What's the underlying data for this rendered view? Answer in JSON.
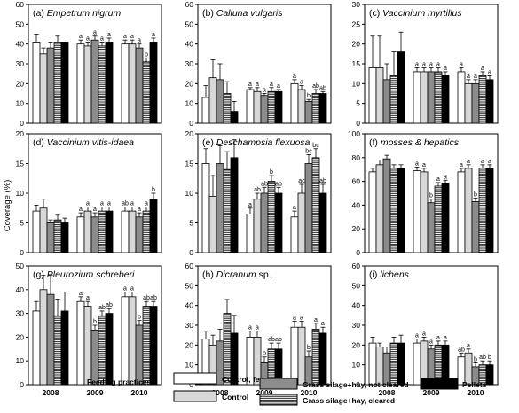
{
  "ylabel": "Coverage (%)",
  "legend": {
    "title": "Feeding practices",
    "items": [
      "Control, fenced",
      "Control",
      "Grass silage+hay, not cleared",
      "Grass silage+hay, cleared",
      "Pellets"
    ]
  },
  "colors": {
    "control_fenced": "#ffffff",
    "control": "#d8d8d8",
    "not_cleared": "#8c8c8c",
    "cleared_hatch": "#000000",
    "pellets": "#000000"
  },
  "chart_data": [
    {
      "type": "bar",
      "title_prefix": "(a)",
      "title_species": "Empetrum nigrum",
      "ylim": [
        0,
        60
      ],
      "yticks": [
        "0",
        "10",
        "20",
        "30",
        "40",
        "50",
        "60"
      ],
      "categories": [
        "2008",
        "2009",
        "2010"
      ],
      "series": [
        {
          "name": "Control, fenced",
          "values": [
            41,
            40,
            40
          ],
          "err": [
            4,
            2,
            2
          ]
        },
        {
          "name": "Control",
          "values": [
            35,
            39,
            40
          ],
          "err": [
            3,
            2,
            2
          ]
        },
        {
          "name": "Grass silage+hay, not cleared",
          "values": [
            38,
            42,
            38
          ],
          "err": [
            3,
            2,
            2
          ]
        },
        {
          "name": "Grass silage+hay, cleared",
          "values": [
            41,
            39,
            31
          ],
          "err": [
            3,
            2,
            2
          ]
        },
        {
          "name": "Pellets",
          "values": [
            41,
            41,
            41
          ],
          "err": [
            0,
            2,
            2
          ]
        }
      ],
      "letters": [
        [
          "",
          "",
          "",
          "",
          ""
        ],
        [
          "a",
          "a",
          "a",
          "a",
          "a"
        ],
        [
          "a",
          "a",
          "a",
          "b",
          "a"
        ]
      ]
    },
    {
      "type": "bar",
      "title_prefix": "(b)",
      "title_species": "Calluna vulgaris",
      "ylim": [
        0,
        60
      ],
      "yticks": [
        "0",
        "10",
        "20",
        "30",
        "40",
        "50",
        "60"
      ],
      "categories": [
        "2008",
        "2009",
        "2010"
      ],
      "series": [
        {
          "name": "Control, fenced",
          "values": [
            13,
            17,
            20
          ],
          "err": [
            6,
            1,
            2
          ]
        },
        {
          "name": "Control",
          "values": [
            23,
            16,
            17
          ],
          "err": [
            9,
            2,
            2
          ]
        },
        {
          "name": "Grass silage+hay, not cleared",
          "values": [
            22,
            14,
            11
          ],
          "err": [
            8,
            1,
            1
          ]
        },
        {
          "name": "Grass silage+hay, cleared",
          "values": [
            15,
            16,
            15
          ],
          "err": [
            6,
            2,
            2
          ]
        },
        {
          "name": "Pellets",
          "values": [
            6,
            16,
            15
          ],
          "err": [
            5,
            1,
            1
          ]
        }
      ],
      "letters": [
        [
          "",
          "",
          "",
          "",
          ""
        ],
        [
          "a",
          "a",
          "a",
          "a",
          "a"
        ],
        [
          "a",
          "a",
          "b",
          "ab",
          "ab"
        ]
      ]
    },
    {
      "type": "bar",
      "title_prefix": "(c)",
      "title_species": "Vaccinium myrtillus",
      "ylim": [
        0,
        30
      ],
      "yticks": [
        "0",
        "5",
        "10",
        "15",
        "20",
        "25",
        "30"
      ],
      "categories": [
        "2008",
        "2009",
        "2010"
      ],
      "series": [
        {
          "name": "Control, fenced",
          "values": [
            14,
            13,
            13
          ],
          "err": [
            8,
            1,
            1
          ]
        },
        {
          "name": "Control",
          "values": [
            14,
            13,
            10
          ],
          "err": [
            8,
            1,
            1
          ]
        },
        {
          "name": "Grass silage+hay, not cleared",
          "values": [
            11,
            13,
            10
          ],
          "err": [
            4,
            1,
            1
          ]
        },
        {
          "name": "Grass silage+hay, cleared",
          "values": [
            12,
            13,
            12
          ],
          "err": [
            6,
            1,
            1
          ]
        },
        {
          "name": "Pellets",
          "values": [
            18,
            12,
            11
          ],
          "err": [
            5,
            1,
            1
          ]
        }
      ],
      "letters": [
        [
          "",
          "",
          "",
          "",
          ""
        ],
        [
          "a",
          "a",
          "a",
          "a",
          "a"
        ],
        [
          "a",
          "a",
          "a",
          "a",
          "a"
        ]
      ]
    },
    {
      "type": "bar",
      "title_prefix": "(d)",
      "title_species": "Vaccinium vitis-idaea",
      "ylim": [
        0,
        20
      ],
      "yticks": [
        "0",
        "5",
        "10",
        "15",
        "20"
      ],
      "categories": [
        "2008",
        "2009",
        "2010"
      ],
      "series": [
        {
          "name": "Control, fenced",
          "values": [
            7,
            6,
            7
          ],
          "err": [
            1,
            0.7,
            0.7
          ]
        },
        {
          "name": "Control",
          "values": [
            7.5,
            7,
            7
          ],
          "err": [
            1.5,
            0.7,
            0.7
          ]
        },
        {
          "name": "Grass silage+hay, not cleared",
          "values": [
            5,
            6,
            6
          ],
          "err": [
            0.5,
            0.7,
            0.7
          ]
        },
        {
          "name": "Grass silage+hay, cleared",
          "values": [
            5.5,
            7,
            7
          ],
          "err": [
            0.8,
            0.7,
            0.7
          ]
        },
        {
          "name": "Pellets",
          "values": [
            5,
            7,
            9
          ],
          "err": [
            0.8,
            0.7,
            1
          ]
        }
      ],
      "letters": [
        [
          "",
          "",
          "",
          "",
          ""
        ],
        [
          "a",
          "a",
          "a",
          "a",
          "a"
        ],
        [
          "ab",
          "a",
          "a",
          "a",
          "b"
        ]
      ]
    },
    {
      "type": "bar",
      "title_prefix": "(e)",
      "title_species": "Deschampsia flexuosa",
      "ylim": [
        0,
        20
      ],
      "yticks": [
        "0",
        "5",
        "10",
        "15",
        "20"
      ],
      "categories": [
        "2008",
        "2009",
        "2010"
      ],
      "series": [
        {
          "name": "Control, fenced",
          "values": [
            15,
            6.5,
            6
          ],
          "err": [
            2.5,
            1,
            1
          ]
        },
        {
          "name": "Control",
          "values": [
            9.5,
            9,
            10
          ],
          "err": [
            3.5,
            1,
            1.5
          ]
        },
        {
          "name": "Grass silage+hay, not cleared",
          "values": [
            15,
            10,
            15
          ],
          "err": [
            3,
            1,
            1.5
          ]
        },
        {
          "name": "Grass silage+hay, cleared",
          "values": [
            14,
            12,
            16
          ],
          "err": [
            3,
            1,
            1.5
          ]
        },
        {
          "name": "Pellets",
          "values": [
            16,
            10,
            10
          ],
          "err": [
            3,
            1,
            1.5
          ]
        }
      ],
      "letters": [
        [
          "",
          "",
          "",
          "",
          ""
        ],
        [
          "a",
          "ab",
          "ab",
          "b",
          "ab"
        ],
        [
          "a",
          "ac",
          "bc",
          "bc",
          "ab"
        ]
      ]
    },
    {
      "type": "bar",
      "title_prefix": "(f)",
      "title_species": "mosses & hepatics",
      "ylim": [
        0,
        100
      ],
      "yticks": [
        "0",
        "20",
        "40",
        "60",
        "80",
        "100"
      ],
      "categories": [
        "2008",
        "2009",
        "2010"
      ],
      "series": [
        {
          "name": "Control, fenced",
          "values": [
            68,
            69,
            68
          ],
          "err": [
            3,
            3,
            3
          ]
        },
        {
          "name": "Control",
          "values": [
            74,
            68,
            71
          ],
          "err": [
            4,
            3,
            3
          ]
        },
        {
          "name": "Grass silage+hay, not cleared",
          "values": [
            79,
            42,
            43
          ],
          "err": [
            3,
            3,
            3
          ]
        },
        {
          "name": "Grass silage+hay, cleared",
          "values": [
            71,
            56,
            71
          ],
          "err": [
            3,
            3,
            3
          ]
        },
        {
          "name": "Pellets",
          "values": [
            71,
            58,
            71
          ],
          "err": [
            3,
            3,
            3
          ]
        }
      ],
      "letters": [
        [
          "",
          "",
          "",
          "",
          ""
        ],
        [
          "a",
          "a",
          "b",
          "a",
          "a"
        ],
        [
          "a",
          "a",
          "b",
          "a",
          "a"
        ]
      ]
    },
    {
      "type": "bar",
      "title_prefix": "(g)",
      "title_species": "Pleurozium schreberi",
      "ylim": [
        0,
        50
      ],
      "yticks": [
        "0",
        "10",
        "20",
        "30",
        "40",
        "50"
      ],
      "categories": [
        "2008",
        "2009",
        "2010"
      ],
      "series": [
        {
          "name": "Control, fenced",
          "values": [
            31,
            35,
            37
          ],
          "err": [
            4,
            2,
            2
          ]
        },
        {
          "name": "Control",
          "values": [
            40,
            33,
            37
          ],
          "err": [
            6,
            2,
            2
          ]
        },
        {
          "name": "Grass silage+hay, not cleared",
          "values": [
            38,
            23,
            25
          ],
          "err": [
            8,
            2,
            2
          ]
        },
        {
          "name": "Grass silage+hay, cleared",
          "values": [
            29,
            29,
            33
          ],
          "err": [
            7,
            2,
            2
          ]
        },
        {
          "name": "Pellets",
          "values": [
            31,
            30,
            33
          ],
          "err": [
            8,
            2,
            2
          ]
        }
      ],
      "letters": [
        [
          "",
          "",
          "",
          "",
          ""
        ],
        [
          "a",
          "a",
          "b",
          "ab",
          "ab"
        ],
        [
          "a",
          "a",
          "b",
          "ab",
          "ab"
        ]
      ]
    },
    {
      "type": "bar",
      "title_prefix": "(h)",
      "title_species": "Dicranum",
      "title_suffix": "sp.",
      "ylim": [
        0,
        60
      ],
      "yticks": [
        "0",
        "10",
        "20",
        "30",
        "40",
        "50",
        "60"
      ],
      "categories": [
        "2008",
        "2009",
        "2010"
      ],
      "series": [
        {
          "name": "Control, fenced",
          "values": [
            23,
            24,
            29
          ],
          "err": [
            4,
            3,
            3
          ]
        },
        {
          "name": "Control",
          "values": [
            20,
            24,
            29
          ],
          "err": [
            5,
            3,
            3
          ]
        },
        {
          "name": "Grass silage+hay, not cleared",
          "values": [
            22,
            11,
            14
          ],
          "err": [
            6,
            3,
            3
          ]
        },
        {
          "name": "Grass silage+hay, cleared",
          "values": [
            36,
            18,
            28
          ],
          "err": [
            7,
            3,
            3
          ]
        },
        {
          "name": "Pellets",
          "values": [
            26,
            18,
            26
          ],
          "err": [
            9,
            3,
            3
          ]
        }
      ],
      "letters": [
        [
          "",
          "",
          "",
          "",
          ""
        ],
        [
          "a",
          "a",
          "b",
          "ab",
          "ab"
        ],
        [
          "a",
          "a",
          "b",
          "a",
          "a"
        ]
      ]
    },
    {
      "type": "bar",
      "title_prefix": "(i)",
      "title_species": "lichens",
      "ylim": [
        0,
        60
      ],
      "yticks": [
        "0",
        "10",
        "20",
        "30",
        "40",
        "50",
        "60"
      ],
      "categories": [
        "2008",
        "2009",
        "2010"
      ],
      "series": [
        {
          "name": "Control, fenced",
          "values": [
            21,
            21,
            14
          ],
          "err": [
            3,
            2,
            2
          ]
        },
        {
          "name": "Control",
          "values": [
            19,
            22,
            16
          ],
          "err": [
            2,
            2,
            2
          ]
        },
        {
          "name": "Grass silage+hay, not cleared",
          "values": [
            16,
            18,
            9
          ],
          "err": [
            3,
            2,
            2
          ]
        },
        {
          "name": "Grass silage+hay, cleared",
          "values": [
            21,
            20,
            10
          ],
          "err": [
            3,
            2,
            2
          ]
        },
        {
          "name": "Pellets",
          "values": [
            21,
            20,
            10
          ],
          "err": [
            4,
            2,
            2
          ]
        }
      ],
      "letters": [
        [
          "",
          "",
          "",
          "",
          ""
        ],
        [
          "a",
          "a",
          "a",
          "a",
          "a"
        ],
        [
          "ab",
          "a",
          "b",
          "ab",
          "b"
        ]
      ]
    }
  ]
}
